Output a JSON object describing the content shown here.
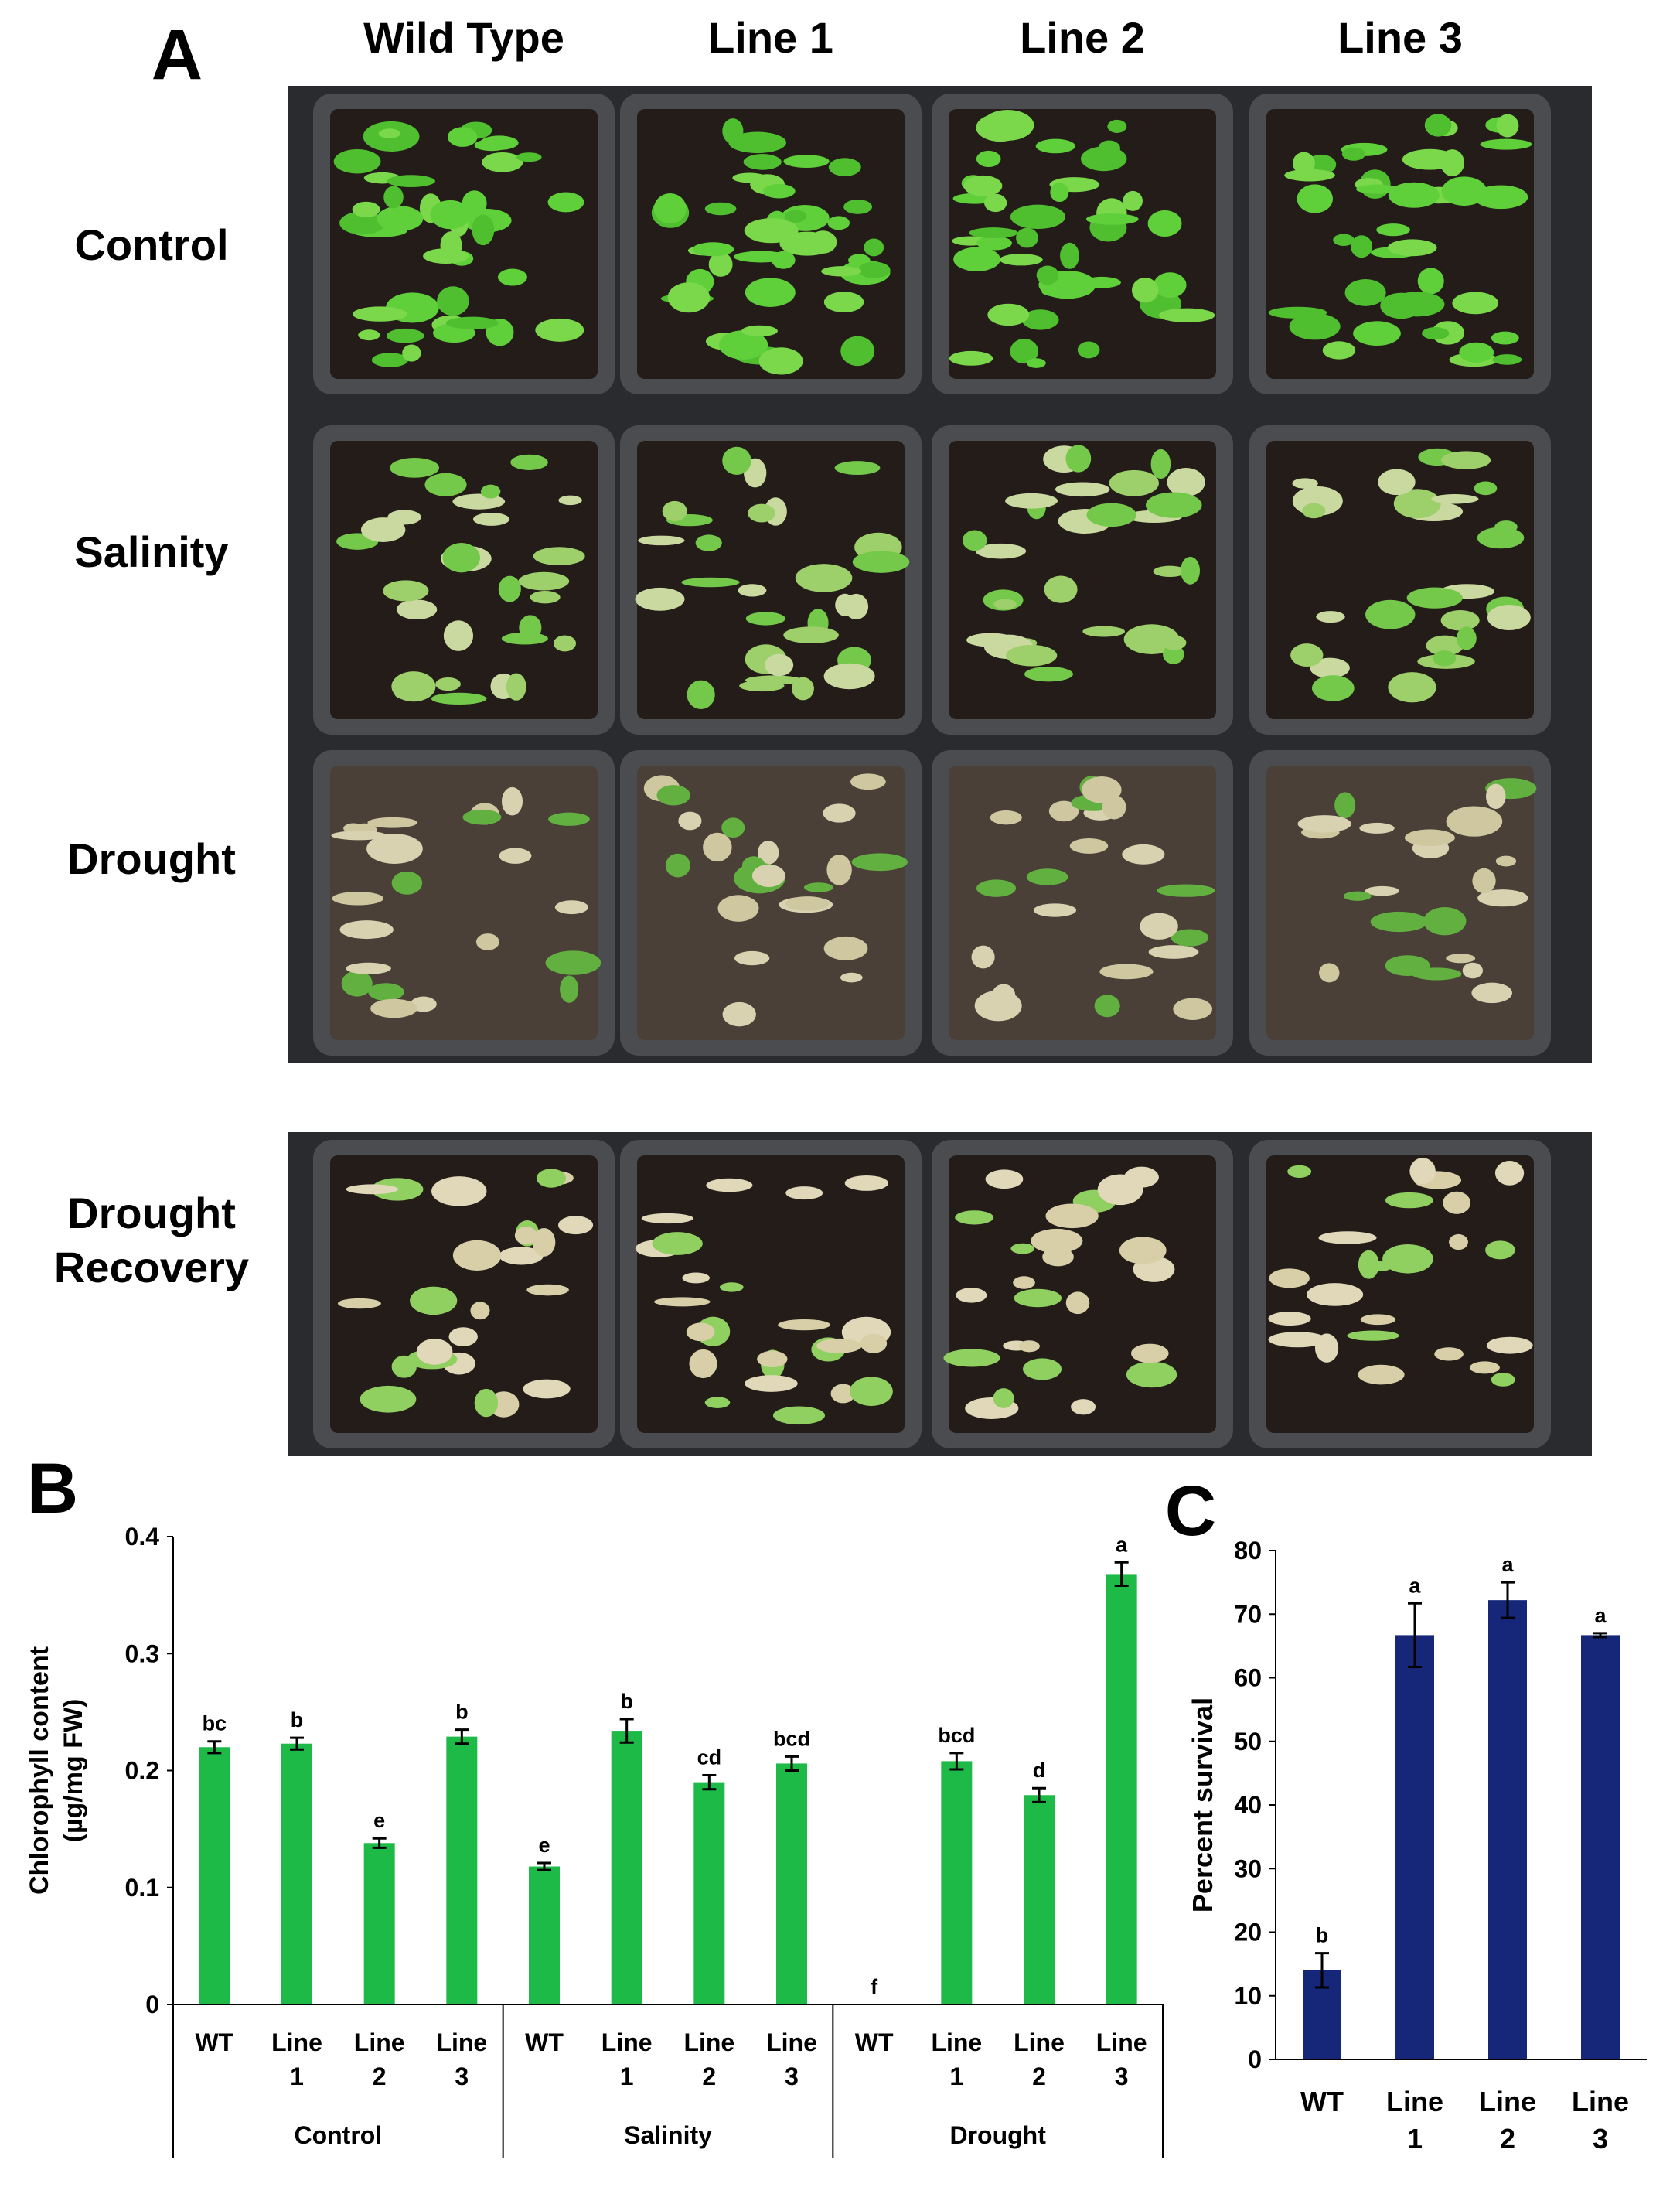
{
  "panel_a": {
    "label": "A",
    "columns": [
      "Wild Type",
      "Line 1",
      "Line 2",
      "Line 3"
    ],
    "rows": [
      "Control",
      "Salinity",
      "Drought",
      "Drought Recovery"
    ]
  },
  "chart_data": [
    {
      "type": "grouped-bar",
      "panel_label": "B",
      "ylabel": [
        "Chlorophyll content",
        "(µg/mg FW)"
      ],
      "categories": [
        "WT",
        "Line 1",
        "Line 2",
        "Line 3"
      ],
      "color": "#1dba48",
      "groups": [
        {
          "name": "Control",
          "values": [
            0.22,
            0.223,
            0.138,
            0.229
          ],
          "errors": [
            0.005,
            0.005,
            0.004,
            0.006
          ],
          "letters": [
            "bc",
            "b",
            "e",
            "b"
          ]
        },
        {
          "name": "Salinity",
          "values": [
            0.118,
            0.234,
            0.19,
            0.206
          ],
          "errors": [
            0.003,
            0.01,
            0.006,
            0.006
          ],
          "letters": [
            "e",
            "b",
            "cd",
            "bcd"
          ]
        },
        {
          "name": "Drought",
          "values": [
            0,
            0.208,
            0.179,
            0.368
          ],
          "errors": [
            0,
            0.007,
            0.006,
            0.01
          ],
          "letters": [
            "f",
            "bcd",
            "d",
            "a"
          ]
        }
      ],
      "ylim": [
        0,
        0.4
      ],
      "yticks": [
        0,
        0.1,
        0.2,
        0.3,
        0.4
      ]
    },
    {
      "type": "bar",
      "panel_label": "C",
      "ylabel": "Percent survival",
      "categories": [
        "WT",
        "Line 1",
        "Line 2",
        "Line 3"
      ],
      "color": "#16277a",
      "values": [
        14,
        66.7,
        72.2,
        66.7
      ],
      "errors": [
        2.7,
        5,
        2.8,
        0.3
      ],
      "letters": [
        "b",
        "a",
        "a",
        "a"
      ],
      "ylim": [
        0,
        80
      ],
      "yticks": [
        0,
        10,
        20,
        30,
        40,
        50,
        60,
        70,
        80
      ]
    }
  ]
}
